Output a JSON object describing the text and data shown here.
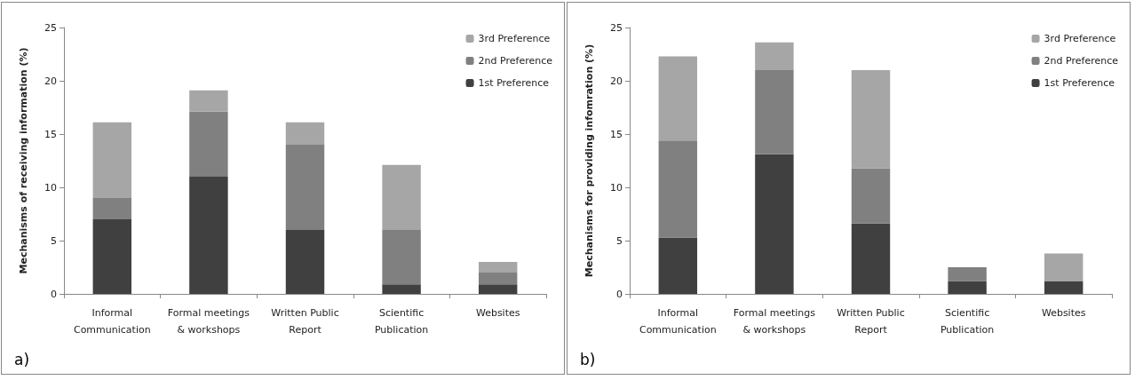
{
  "chart_data": [
    {
      "type": "bar",
      "ylabel": "Mechanisms of receiving information (%)",
      "categories": [
        "Informal\nCommunication",
        "Formal meetings\n& workshops",
        "Written Public\nReport",
        "Scientific\nPublication",
        "Websites"
      ],
      "stacked": true,
      "series": [
        {
          "name": "1st Preference",
          "color": "#404040",
          "values": [
            7,
            11,
            6,
            0.9,
            0.9
          ]
        },
        {
          "name": "2nd Preference",
          "color": "#808080",
          "values": [
            2,
            6.1,
            8,
            5.1,
            1.1
          ]
        },
        {
          "name": "3rd Preference",
          "color": "#a6a6a6",
          "values": [
            7.1,
            2,
            2.1,
            6.1,
            1
          ]
        }
      ],
      "ylim": [
        0,
        25
      ],
      "yticks": [
        0,
        5,
        10,
        15,
        20,
        25
      ],
      "grid": false,
      "legend": "top right",
      "annotations": [
        "a)"
      ]
    },
    {
      "type": "bar",
      "ylabel": "Mechanisms for providing infomration (%)",
      "categories": [
        "Informal\nCommunication",
        "Formal meetings\n& workshops",
        "Written Public\nReport",
        "Scientific\nPublication",
        "Websites"
      ],
      "stacked": true,
      "series": [
        {
          "name": "1st Preference",
          "color": "#404040",
          "values": [
            5.3,
            13.1,
            6.6,
            1.2,
            1.2
          ]
        },
        {
          "name": "2nd Preference",
          "color": "#808080",
          "values": [
            9.1,
            7.9,
            5.2,
            1.3,
            0
          ]
        },
        {
          "name": "3rd Preference",
          "color": "#a6a6a6",
          "values": [
            7.9,
            2.6,
            9.2,
            0,
            2.6
          ]
        }
      ],
      "ylim": [
        0,
        25
      ],
      "yticks": [
        0,
        5,
        10,
        15,
        20,
        25
      ],
      "grid": false,
      "legend": "top right",
      "annotations": [
        "b)"
      ]
    }
  ]
}
